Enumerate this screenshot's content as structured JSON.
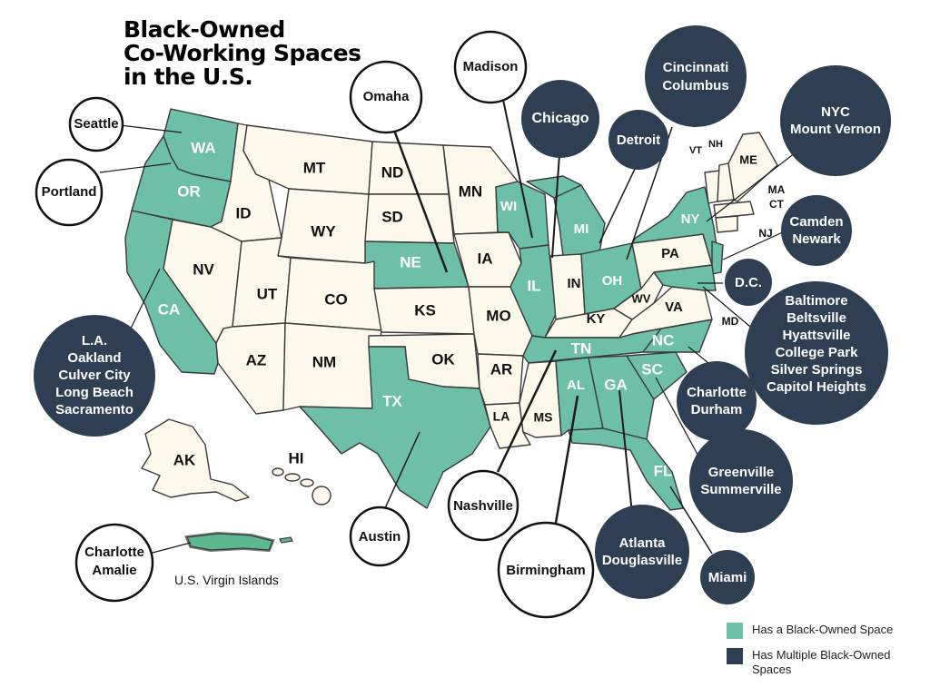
{
  "title": {
    "line1": "Black-Owned",
    "line2": "Co-Working Spaces",
    "line3": "in the U.S."
  },
  "colors": {
    "green": "#6dbfa8",
    "navy": "#2e3e53",
    "cream": "#fdf8ec"
  },
  "states": {
    "WA": "WA",
    "OR": "OR",
    "CA": "CA",
    "ID": "ID",
    "NV": "NV",
    "MT": "MT",
    "WY": "WY",
    "UT": "UT",
    "AZ": "AZ",
    "CO": "CO",
    "NM": "NM",
    "ND": "ND",
    "SD": "SD",
    "NE": "NE",
    "KS": "KS",
    "OK": "OK",
    "TX": "TX",
    "MN": "MN",
    "IA": "IA",
    "MO": "MO",
    "AR": "AR",
    "LA": "LA",
    "WI": "WI",
    "IL": "IL",
    "MI": "MI",
    "IN": "IN",
    "OH": "OH",
    "KY": "KY",
    "TN": "TN",
    "MS": "MS",
    "AL": "AL",
    "GA": "GA",
    "FL": "FL",
    "SC": "SC",
    "NC": "NC",
    "VA": "VA",
    "WV": "WV",
    "PA": "PA",
    "NY": "NY",
    "VT": "VT",
    "NH": "NH",
    "ME": "ME",
    "MA": "MA",
    "CT": "CT",
    "NJ": "NJ",
    "MD": "MD",
    "AK": "AK",
    "HI": "HI"
  },
  "green_states": [
    "WA",
    "OR",
    "CA",
    "NE",
    "TX",
    "WI",
    "IL",
    "MI",
    "OH",
    "TN",
    "AL",
    "GA",
    "FL",
    "SC",
    "NC",
    "NY",
    "NJ",
    "MD"
  ],
  "cities": {
    "seattle": "Seattle",
    "portland": "Portland",
    "la": [
      "L.A.",
      "Oakland",
      "Culver City",
      "Long Beach",
      "Sacramento"
    ],
    "omaha": "Omaha",
    "madison": "Madison",
    "chicago": "Chicago",
    "detroit": "Detroit",
    "cincinnati": [
      "Cincinnati",
      "Columbus"
    ],
    "nyc": [
      "NYC",
      "Mount Vernon"
    ],
    "camden": [
      "Camden",
      "Newark"
    ],
    "dc": "D.C.",
    "baltimore": [
      "Baltimore",
      "Beltsville",
      "Hyattsville",
      "College Park",
      "Silver Springs",
      "Capitol Heights"
    ],
    "charlotte_nc": [
      "Charlotte",
      "Durham"
    ],
    "greenville": [
      "Greenville",
      "Summerville"
    ],
    "atlanta": [
      "Atlanta",
      "Douglasville"
    ],
    "miami": "Miami",
    "birmingham": "Birmingham",
    "nashville": "Nashville",
    "austin": "Austin",
    "charlotte_amalie": [
      "Charlotte",
      "Amalie"
    ]
  },
  "virgin_islands_label": "U.S. Virgin Islands",
  "legend": {
    "single": "Has a Black-Owned Space",
    "multiple": "Has Multiple Black-Owned Spaces"
  }
}
